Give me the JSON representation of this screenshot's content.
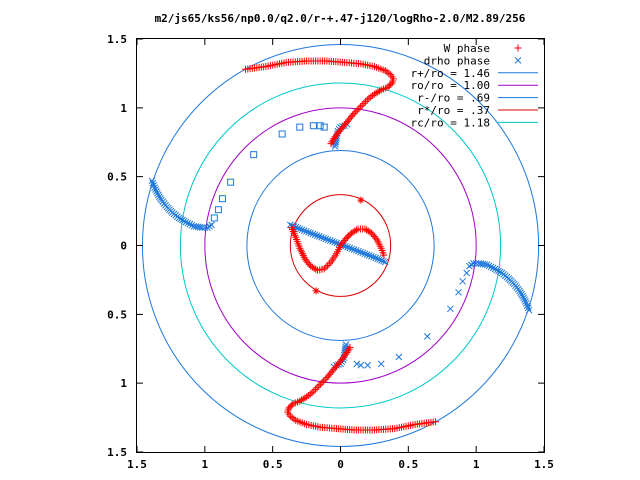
{
  "chart_data": {
    "type": "scatter",
    "title": "m2/js65/ks56/np0.0/q2.0/r-+.47-j120/logRho-2.0/M2.89/256",
    "xlim": [
      -1.5,
      1.5
    ],
    "ylim": [
      -1.5,
      1.5
    ],
    "x_ticks": [
      -1.5,
      -1,
      -0.5,
      0,
      0.5,
      1,
      1.5
    ],
    "y_ticks": [
      -1.5,
      -1,
      -0.5,
      0,
      0.5,
      1,
      1.5
    ],
    "x_tick_labels": [
      "1.5",
      "1",
      "0.5",
      "0",
      "0.5",
      "1",
      "1.5"
    ],
    "y_tick_labels": [
      "1.5",
      "1",
      "0.5",
      "0",
      "0.5",
      "1",
      "1.5"
    ],
    "grid": false,
    "legend_position": "top-right",
    "series": [
      {
        "name": "W phase",
        "marker": "+",
        "color": "#ff0000"
      },
      {
        "name": "drho phase",
        "marker": "x",
        "color": "#1e78dc"
      },
      {
        "name": "r+/ro = 1.46",
        "type": "circle",
        "radius": 1.46,
        "color": "#1e78dc"
      },
      {
        "name": "ro/ro = 1.00",
        "type": "circle",
        "radius": 1.0,
        "color": "#a000c8"
      },
      {
        "name": "r-/ro = .69",
        "type": "circle",
        "radius": 0.69,
        "color": "#1e78dc"
      },
      {
        "name": "r*/ro = .37",
        "type": "circle",
        "radius": 0.37,
        "color": "#dc0000"
      },
      {
        "name": "rc/ro = 1.18",
        "type": "circle",
        "radius": 1.18,
        "color": "#00c8c8"
      }
    ],
    "w_phase_curves": [
      [
        [
          -0.36,
          0.13
        ],
        [
          -0.33,
          0.06
        ],
        [
          -0.3,
          -0.02
        ],
        [
          -0.26,
          -0.1
        ],
        [
          -0.22,
          -0.15
        ],
        [
          -0.17,
          -0.18
        ],
        [
          -0.12,
          -0.17
        ],
        [
          -0.07,
          -0.12
        ],
        [
          -0.03,
          -0.06
        ],
        [
          0.0,
          0.0
        ],
        [
          0.04,
          0.05
        ],
        [
          0.08,
          0.09
        ],
        [
          0.13,
          0.12
        ],
        [
          0.18,
          0.12
        ],
        [
          0.23,
          0.09
        ],
        [
          0.27,
          0.04
        ],
        [
          0.3,
          -0.02
        ],
        [
          0.32,
          -0.07
        ]
      ],
      [
        [
          -0.07,
          0.74
        ],
        [
          -0.04,
          0.79
        ],
        [
          0.0,
          0.84
        ],
        [
          0.05,
          0.9
        ],
        [
          0.1,
          0.96
        ],
        [
          0.16,
          1.02
        ],
        [
          0.21,
          1.07
        ],
        [
          0.25,
          1.1
        ],
        [
          0.3,
          1.13
        ],
        [
          0.35,
          1.15
        ],
        [
          0.38,
          1.18
        ],
        [
          0.39,
          1.21
        ],
        [
          0.37,
          1.24
        ],
        [
          0.33,
          1.27
        ],
        [
          0.25,
          1.3
        ],
        [
          0.15,
          1.32
        ],
        [
          0.03,
          1.33
        ],
        [
          -0.1,
          1.34
        ],
        [
          -0.25,
          1.34
        ],
        [
          -0.4,
          1.33
        ],
        [
          -0.55,
          1.3
        ],
        [
          -0.7,
          1.28
        ]
      ],
      [
        [
          0.07,
          -0.74
        ],
        [
          0.04,
          -0.79
        ],
        [
          0.0,
          -0.84
        ],
        [
          -0.05,
          -0.9
        ],
        [
          -0.1,
          -0.96
        ],
        [
          -0.16,
          -1.02
        ],
        [
          -0.21,
          -1.07
        ],
        [
          -0.25,
          -1.1
        ],
        [
          -0.3,
          -1.13
        ],
        [
          -0.35,
          -1.15
        ],
        [
          -0.38,
          -1.18
        ],
        [
          -0.39,
          -1.21
        ],
        [
          -0.37,
          -1.24
        ],
        [
          -0.33,
          -1.27
        ],
        [
          -0.25,
          -1.3
        ],
        [
          -0.15,
          -1.32
        ],
        [
          -0.03,
          -1.33
        ],
        [
          0.1,
          -1.34
        ],
        [
          0.25,
          -1.34
        ],
        [
          0.4,
          -1.33
        ],
        [
          0.55,
          -1.3
        ],
        [
          0.7,
          -1.28
        ]
      ]
    ],
    "w_phase_isolated": [
      [
        0.15,
        0.33
      ],
      [
        -0.18,
        -0.33
      ]
    ],
    "drho_phase_curves": [
      [
        [
          -0.37,
          0.15
        ],
        [
          -0.3,
          0.12
        ],
        [
          -0.22,
          0.09
        ],
        [
          -0.14,
          0.06
        ],
        [
          -0.06,
          0.03
        ],
        [
          0.02,
          0.0
        ],
        [
          0.1,
          -0.03
        ],
        [
          0.18,
          -0.06
        ],
        [
          0.26,
          -0.09
        ],
        [
          0.33,
          -0.12
        ]
      ],
      [
        [
          -1.39,
          0.47
        ],
        [
          -1.37,
          0.42
        ],
        [
          -1.35,
          0.38
        ],
        [
          -1.32,
          0.33
        ],
        [
          -1.28,
          0.28
        ],
        [
          -1.24,
          0.24
        ],
        [
          -1.19,
          0.2
        ],
        [
          -1.14,
          0.17
        ],
        [
          -1.08,
          0.14
        ],
        [
          -1.02,
          0.13
        ],
        [
          -0.98,
          0.13
        ],
        [
          -0.95,
          0.15
        ]
      ],
      [
        [
          1.39,
          -0.47
        ],
        [
          1.37,
          -0.42
        ],
        [
          1.35,
          -0.38
        ],
        [
          1.32,
          -0.33
        ],
        [
          1.28,
          -0.28
        ],
        [
          1.24,
          -0.24
        ],
        [
          1.19,
          -0.2
        ],
        [
          1.14,
          -0.17
        ],
        [
          1.08,
          -0.14
        ],
        [
          1.02,
          -0.13
        ],
        [
          0.98,
          -0.13
        ],
        [
          0.95,
          -0.15
        ]
      ],
      [
        [
          -0.04,
          0.72
        ],
        [
          -0.03,
          0.78
        ],
        [
          -0.02,
          0.83
        ],
        [
          0.0,
          0.86
        ],
        [
          0.03,
          0.87
        ],
        [
          0.05,
          0.88
        ]
      ],
      [
        [
          0.04,
          -0.72
        ],
        [
          0.03,
          -0.78
        ],
        [
          0.02,
          -0.83
        ],
        [
          0.0,
          -0.86
        ],
        [
          -0.03,
          -0.87
        ],
        [
          -0.05,
          -0.88
        ]
      ]
    ],
    "drho_phase_isolated": [
      [
        -0.93,
        0.2
      ],
      [
        -0.9,
        0.26
      ],
      [
        -0.87,
        0.34
      ],
      [
        -0.81,
        0.46
      ],
      [
        -0.64,
        0.66
      ],
      [
        -0.43,
        0.81
      ],
      [
        -0.3,
        0.86
      ],
      [
        -0.2,
        0.87
      ],
      [
        -0.15,
        0.87
      ],
      [
        -0.12,
        0.86
      ],
      [
        0.93,
        -0.2
      ],
      [
        0.9,
        -0.26
      ],
      [
        0.87,
        -0.34
      ],
      [
        0.81,
        -0.46
      ],
      [
        0.64,
        -0.66
      ],
      [
        0.43,
        -0.81
      ],
      [
        0.3,
        -0.86
      ],
      [
        0.2,
        -0.87
      ],
      [
        0.15,
        -0.87
      ],
      [
        0.12,
        -0.86
      ]
    ]
  }
}
